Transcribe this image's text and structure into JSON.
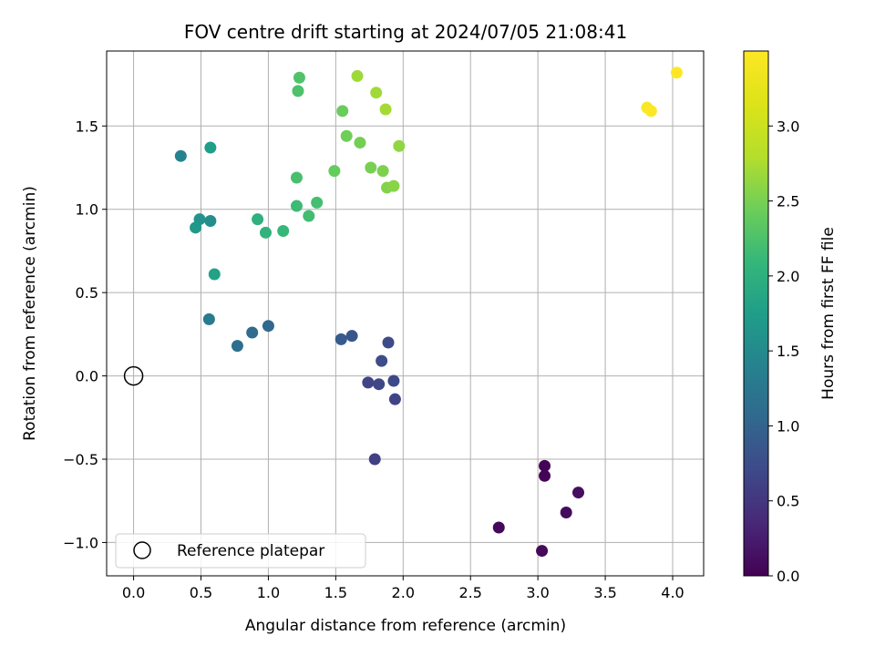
{
  "chart_data": {
    "type": "scatter",
    "title": "FOV centre drift starting at 2024/07/05 21:08:41",
    "xlabel": "Angular distance from reference (arcmin)",
    "ylabel": "Rotation from reference (arcmin)",
    "xlim": [
      -0.2,
      4.23
    ],
    "ylim": [
      -1.2,
      1.95
    ],
    "xticks": [
      0.0,
      0.5,
      1.0,
      1.5,
      2.0,
      2.5,
      3.0,
      3.5,
      4.0
    ],
    "xtick_labels": [
      "0.0",
      "0.5",
      "1.0",
      "1.5",
      "2.0",
      "2.5",
      "3.0",
      "3.5",
      "4.0"
    ],
    "yticks": [
      -1.0,
      -0.5,
      0.0,
      0.5,
      1.0,
      1.5
    ],
    "ytick_labels": [
      "−1.0",
      "−0.5",
      "0.0",
      "0.5",
      "1.0",
      "1.5"
    ],
    "grid": true,
    "colormap": "viridis",
    "colorbar": {
      "label": "Hours from first FF file",
      "range": [
        0,
        3.5
      ],
      "ticks": [
        0.0,
        0.5,
        1.0,
        1.5,
        2.0,
        2.5,
        3.0
      ],
      "tick_labels": [
        "0.0",
        "0.5",
        "1.0",
        "1.5",
        "2.0",
        "2.5",
        "3.0"
      ]
    },
    "legend": {
      "placement": "lower-left",
      "entries": [
        "Reference platepar"
      ]
    },
    "reference_point": {
      "x": 0.0,
      "y": 0.0
    },
    "points": [
      {
        "x": 3.05,
        "y": -0.54,
        "c": 0.02
      },
      {
        "x": 3.05,
        "y": -0.6,
        "c": 0.04
      },
      {
        "x": 2.71,
        "y": -0.91,
        "c": 0.06
      },
      {
        "x": 3.03,
        "y": -1.05,
        "c": 0.08
      },
      {
        "x": 3.21,
        "y": -0.82,
        "c": 0.1
      },
      {
        "x": 3.3,
        "y": -0.7,
        "c": 0.12
      },
      {
        "x": 1.79,
        "y": -0.5,
        "c": 0.6
      },
      {
        "x": 1.94,
        "y": -0.14,
        "c": 0.64
      },
      {
        "x": 1.74,
        "y": -0.04,
        "c": 0.66
      },
      {
        "x": 1.82,
        "y": -0.05,
        "c": 0.68
      },
      {
        "x": 1.93,
        "y": -0.03,
        "c": 0.7
      },
      {
        "x": 1.89,
        "y": 0.2,
        "c": 0.72
      },
      {
        "x": 1.84,
        "y": 0.09,
        "c": 0.75
      },
      {
        "x": 1.62,
        "y": 0.24,
        "c": 0.85
      },
      {
        "x": 1.54,
        "y": 0.22,
        "c": 0.9
      },
      {
        "x": 1.0,
        "y": 0.3,
        "c": 1.05
      },
      {
        "x": 0.88,
        "y": 0.26,
        "c": 1.1
      },
      {
        "x": 0.77,
        "y": 0.18,
        "c": 1.15
      },
      {
        "x": 0.56,
        "y": 0.34,
        "c": 1.3
      },
      {
        "x": 0.35,
        "y": 1.32,
        "c": 1.4
      },
      {
        "x": 0.57,
        "y": 0.93,
        "c": 1.55
      },
      {
        "x": 0.49,
        "y": 0.94,
        "c": 1.62
      },
      {
        "x": 0.46,
        "y": 0.89,
        "c": 1.68
      },
      {
        "x": 0.57,
        "y": 1.37,
        "c": 1.75
      },
      {
        "x": 0.6,
        "y": 0.61,
        "c": 1.8
      },
      {
        "x": 0.92,
        "y": 0.94,
        "c": 2.0
      },
      {
        "x": 0.98,
        "y": 0.86,
        "c": 2.05
      },
      {
        "x": 1.11,
        "y": 0.87,
        "c": 2.1
      },
      {
        "x": 1.21,
        "y": 1.02,
        "c": 2.15
      },
      {
        "x": 1.3,
        "y": 0.96,
        "c": 2.18
      },
      {
        "x": 1.36,
        "y": 1.04,
        "c": 2.2
      },
      {
        "x": 1.21,
        "y": 1.19,
        "c": 2.22
      },
      {
        "x": 1.22,
        "y": 1.71,
        "c": 2.25
      },
      {
        "x": 1.23,
        "y": 1.79,
        "c": 2.27
      },
      {
        "x": 1.49,
        "y": 1.23,
        "c": 2.4
      },
      {
        "x": 1.55,
        "y": 1.59,
        "c": 2.42
      },
      {
        "x": 1.58,
        "y": 1.44,
        "c": 2.45
      },
      {
        "x": 1.68,
        "y": 1.4,
        "c": 2.48
      },
      {
        "x": 1.76,
        "y": 1.25,
        "c": 2.5
      },
      {
        "x": 1.85,
        "y": 1.23,
        "c": 2.52
      },
      {
        "x": 1.88,
        "y": 1.13,
        "c": 2.55
      },
      {
        "x": 1.93,
        "y": 1.14,
        "c": 2.58
      },
      {
        "x": 1.97,
        "y": 1.38,
        "c": 2.62
      },
      {
        "x": 1.66,
        "y": 1.8,
        "c": 2.68
      },
      {
        "x": 1.8,
        "y": 1.7,
        "c": 2.7
      },
      {
        "x": 1.87,
        "y": 1.6,
        "c": 2.72
      },
      {
        "x": 3.81,
        "y": 1.61,
        "c": 3.47
      },
      {
        "x": 3.84,
        "y": 1.59,
        "c": 3.48
      },
      {
        "x": 4.03,
        "y": 1.82,
        "c": 3.5
      }
    ]
  }
}
